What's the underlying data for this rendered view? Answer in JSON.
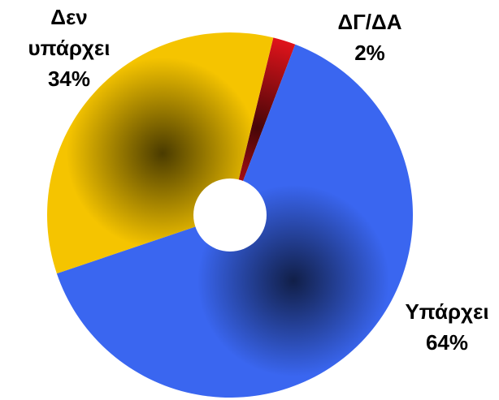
{
  "chart_data": {
    "type": "pie",
    "donut": true,
    "categories": [
      "ΔΓ/ΔΑ",
      "Υπάρχει",
      "Δεν υπάρχει"
    ],
    "values": [
      2,
      64,
      34
    ],
    "value_labels": [
      "2%",
      "64%",
      "34%"
    ],
    "colors": [
      "#e8141c",
      "#3a66f0",
      "#f5c400"
    ]
  }
}
